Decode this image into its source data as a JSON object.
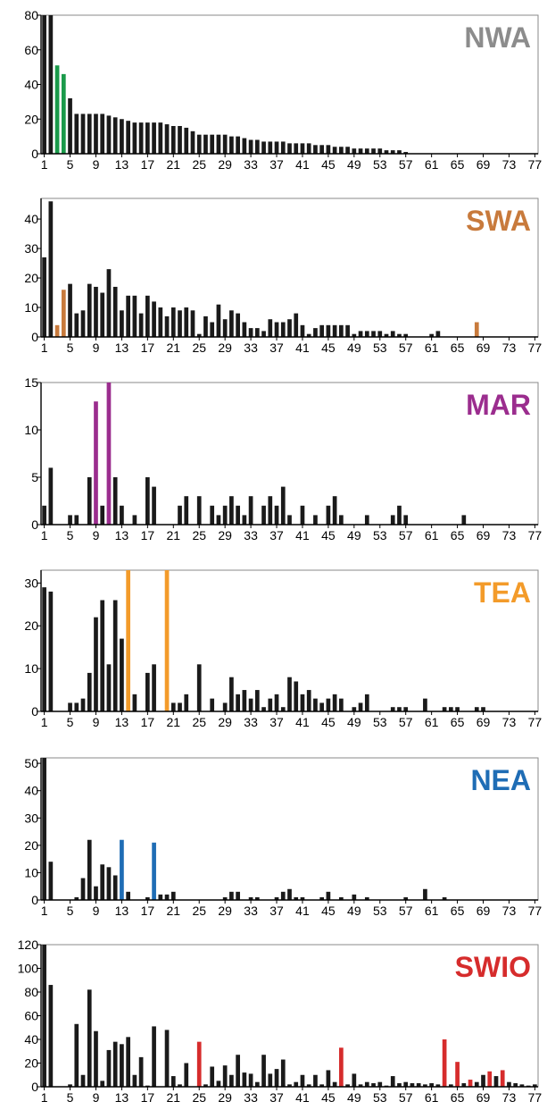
{
  "chart_data": [
    {
      "type": "bar",
      "title": "NWA",
      "title_color": "#8c8c8c",
      "highlight_color": "#1a9a4a",
      "ylim": [
        0,
        80
      ],
      "yticks": [
        0,
        20,
        40,
        60,
        80
      ],
      "xticks": [
        1,
        5,
        9,
        13,
        17,
        21,
        25,
        29,
        33,
        37,
        41,
        45,
        49,
        53,
        57,
        61,
        65,
        69,
        73,
        77
      ],
      "x": [
        1,
        2,
        3,
        4,
        5,
        6,
        7,
        8,
        9,
        10,
        11,
        12,
        13,
        14,
        15,
        16,
        17,
        18,
        19,
        20,
        21,
        22,
        23,
        24,
        25,
        26,
        27,
        28,
        29,
        30,
        31,
        32,
        33,
        34,
        35,
        36,
        37,
        38,
        39,
        40,
        41,
        42,
        43,
        44,
        45,
        46,
        47,
        48,
        49,
        50,
        51,
        52,
        53,
        54,
        55,
        56,
        57
      ],
      "values": [
        80,
        80,
        51,
        46,
        32,
        23,
        23,
        23,
        23,
        23,
        22,
        21,
        20,
        19,
        18,
        18,
        18,
        18,
        18,
        17,
        16,
        16,
        15,
        13,
        11,
        11,
        11,
        11,
        11,
        10,
        10,
        9,
        8,
        8,
        7,
        7,
        7,
        7,
        6,
        6,
        6,
        6,
        5,
        5,
        5,
        4,
        4,
        4,
        3,
        3,
        3,
        3,
        3,
        2,
        2,
        2,
        1
      ],
      "highlight_x": [
        3,
        4
      ]
    },
    {
      "type": "bar",
      "title": "SWA",
      "title_color": "#c87a3c",
      "highlight_color": "#c87a3c",
      "ylim": [
        0,
        47
      ],
      "yticks": [
        0,
        10,
        20,
        30,
        40
      ],
      "xticks": [
        1,
        5,
        9,
        13,
        17,
        21,
        25,
        29,
        33,
        37,
        41,
        45,
        49,
        53,
        57,
        61,
        65,
        69,
        73,
        77
      ],
      "x": [
        1,
        2,
        3,
        4,
        5,
        6,
        7,
        8,
        9,
        10,
        11,
        12,
        13,
        14,
        15,
        16,
        17,
        18,
        19,
        20,
        21,
        22,
        23,
        24,
        25,
        26,
        27,
        28,
        29,
        30,
        31,
        32,
        33,
        34,
        35,
        36,
        37,
        38,
        39,
        40,
        41,
        42,
        43,
        44,
        45,
        46,
        47,
        48,
        49,
        50,
        51,
        52,
        53,
        54,
        55,
        56,
        57,
        61,
        62,
        68
      ],
      "values": [
        27,
        46,
        4,
        16,
        18,
        8,
        9,
        18,
        17,
        15,
        23,
        17,
        9,
        14,
        14,
        8,
        14,
        12,
        10,
        7,
        10,
        9,
        10,
        9,
        1,
        7,
        5,
        11,
        6,
        9,
        8,
        5,
        3,
        3,
        2,
        6,
        5,
        5,
        6,
        8,
        4,
        1,
        3,
        4,
        4,
        4,
        4,
        4,
        1,
        2,
        2,
        2,
        2,
        1,
        2,
        1,
        1,
        1,
        2,
        5
      ],
      "highlight_x": [
        3,
        4,
        68
      ]
    },
    {
      "type": "bar",
      "title": "MAR",
      "title_color": "#9b2d8e",
      "highlight_color": "#9b2d8e",
      "ylim": [
        0,
        15
      ],
      "yticks": [
        0,
        5,
        10,
        15
      ],
      "xticks": [
        1,
        5,
        9,
        13,
        17,
        21,
        25,
        29,
        33,
        37,
        41,
        45,
        49,
        53,
        57,
        61,
        65,
        69,
        73,
        77
      ],
      "x": [
        1,
        2,
        5,
        6,
        8,
        9,
        10,
        11,
        12,
        13,
        15,
        17,
        18,
        22,
        23,
        25,
        27,
        28,
        29,
        30,
        31,
        32,
        33,
        35,
        36,
        37,
        38,
        39,
        41,
        43,
        45,
        46,
        47,
        51,
        55,
        56,
        57,
        66
      ],
      "values": [
        2,
        6,
        1,
        1,
        5,
        13,
        2,
        15,
        5,
        2,
        1,
        5,
        4,
        2,
        3,
        3,
        2,
        1,
        2,
        3,
        2,
        1,
        3,
        2,
        3,
        2,
        4,
        1,
        2,
        1,
        2,
        3,
        1,
        1,
        1,
        2,
        1,
        1
      ],
      "highlight_x": [
        9,
        11
      ]
    },
    {
      "type": "bar",
      "title": "TEA",
      "title_color": "#f39b2a",
      "highlight_color": "#f39b2a",
      "ylim": [
        0,
        33
      ],
      "yticks": [
        0,
        10,
        20,
        30
      ],
      "xticks": [
        1,
        5,
        9,
        13,
        17,
        21,
        25,
        29,
        33,
        37,
        41,
        45,
        49,
        53,
        57,
        61,
        65,
        69,
        73,
        77
      ],
      "x": [
        1,
        2,
        5,
        6,
        7,
        8,
        9,
        10,
        11,
        12,
        13,
        14,
        15,
        17,
        18,
        20,
        21,
        22,
        23,
        25,
        27,
        29,
        30,
        31,
        32,
        33,
        34,
        35,
        36,
        37,
        38,
        39,
        40,
        41,
        42,
        43,
        44,
        45,
        46,
        47,
        49,
        50,
        51,
        55,
        56,
        57,
        60,
        63,
        64,
        65,
        68,
        69
      ],
      "values": [
        29,
        28,
        2,
        2,
        3,
        9,
        22,
        26,
        11,
        26,
        17,
        33,
        4,
        9,
        11,
        33,
        2,
        2,
        4,
        11,
        3,
        2,
        8,
        4,
        5,
        3,
        5,
        1,
        3,
        4,
        1,
        8,
        7,
        4,
        5,
        3,
        2,
        3,
        4,
        3,
        1,
        2,
        4,
        1,
        1,
        1,
        3,
        1,
        1,
        1,
        1,
        1
      ],
      "highlight_x": [
        14,
        20
      ]
    },
    {
      "type": "bar",
      "title": "NEA",
      "title_color": "#1f6db5",
      "highlight_color": "#1f6db5",
      "ylim": [
        0,
        52
      ],
      "yticks": [
        0,
        10,
        20,
        30,
        40,
        50
      ],
      "xticks": [
        1,
        5,
        9,
        13,
        17,
        21,
        25,
        29,
        33,
        37,
        41,
        45,
        49,
        53,
        57,
        61,
        65,
        69,
        73,
        77
      ],
      "x": [
        1,
        2,
        6,
        7,
        8,
        9,
        10,
        11,
        12,
        13,
        14,
        17,
        18,
        19,
        20,
        21,
        29,
        30,
        31,
        33,
        34,
        37,
        38,
        39,
        40,
        41,
        44,
        45,
        47,
        49,
        51,
        57,
        60,
        63
      ],
      "values": [
        52,
        14,
        1,
        8,
        22,
        5,
        13,
        12,
        9,
        22,
        3,
        1,
        21,
        2,
        2,
        3,
        1,
        3,
        3,
        1,
        1,
        1,
        3,
        4,
        1,
        1,
        1,
        3,
        1,
        2,
        1,
        1,
        4,
        1
      ],
      "highlight_x": [
        13,
        18
      ]
    },
    {
      "type": "bar",
      "title": "SWIO",
      "title_color": "#d62c2c",
      "highlight_color": "#d62c2c",
      "ylim": [
        0,
        120
      ],
      "yticks": [
        0,
        20,
        40,
        60,
        80,
        100,
        120
      ],
      "xticks": [
        1,
        5,
        9,
        13,
        17,
        21,
        25,
        29,
        33,
        37,
        41,
        45,
        49,
        53,
        57,
        61,
        65,
        69,
        73,
        77
      ],
      "x": [
        1,
        2,
        5,
        6,
        7,
        8,
        9,
        10,
        11,
        12,
        13,
        14,
        15,
        16,
        17,
        18,
        20,
        21,
        22,
        23,
        25,
        26,
        27,
        28,
        29,
        30,
        31,
        32,
        33,
        34,
        35,
        36,
        37,
        38,
        39,
        40,
        41,
        42,
        43,
        44,
        45,
        46,
        47,
        48,
        49,
        50,
        51,
        52,
        53,
        54,
        55,
        56,
        57,
        58,
        59,
        60,
        61,
        62,
        63,
        64,
        65,
        66,
        67,
        68,
        69,
        70,
        71,
        72,
        73,
        74,
        75,
        76,
        77
      ],
      "values": [
        120,
        86,
        2,
        53,
        10,
        82,
        47,
        5,
        31,
        38,
        36,
        42,
        10,
        25,
        1,
        51,
        48,
        9,
        2,
        20,
        38,
        2,
        17,
        5,
        18,
        10,
        27,
        12,
        11,
        4,
        27,
        11,
        15,
        23,
        2,
        4,
        10,
        2,
        10,
        2,
        14,
        4,
        33,
        2,
        11,
        2,
        4,
        3,
        4,
        1,
        9,
        3,
        4,
        3,
        3,
        2,
        3,
        2,
        40,
        2,
        21,
        3,
        6,
        4,
        10,
        13,
        9,
        14,
        4,
        3,
        2,
        1,
        2
      ],
      "highlight_x": [
        25,
        47,
        63,
        65,
        67,
        70,
        72
      ]
    }
  ]
}
